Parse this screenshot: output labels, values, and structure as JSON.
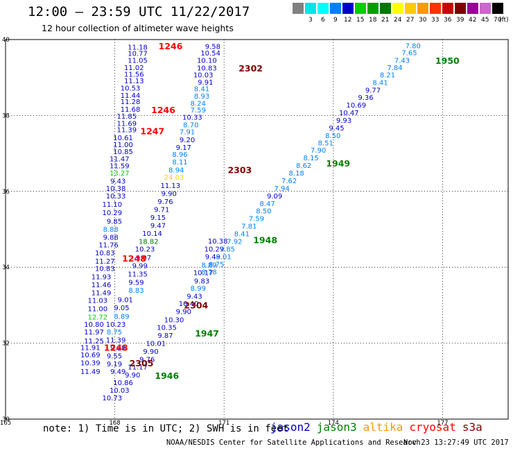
{
  "header": {
    "title": "12:00 – 23:59 UTC 11/22/2017",
    "subtitle": "12 hour collection of altimeter wave heights"
  },
  "color_scale": {
    "unit": "(ft)",
    "bins": [
      {
        "label": "",
        "color": "#808080"
      },
      {
        "label": "3",
        "color": "#00e5e5"
      },
      {
        "label": "6",
        "color": "#00ffff"
      },
      {
        "label": "9",
        "color": "#0080ff"
      },
      {
        "label": "12",
        "color": "#0000cd"
      },
      {
        "label": "15",
        "color": "#00d000"
      },
      {
        "label": "18",
        "color": "#00a000"
      },
      {
        "label": "21",
        "color": "#007800"
      },
      {
        "label": "24",
        "color": "#ffff00"
      },
      {
        "label": "27",
        "color": "#ffcc00"
      },
      {
        "label": "30",
        "color": "#ff9900"
      },
      {
        "label": "33",
        "color": "#ff3300"
      },
      {
        "label": "36",
        "color": "#cc0000"
      },
      {
        "label": "39",
        "color": "#800000"
      },
      {
        "label": "42",
        "color": "#990099"
      },
      {
        "label": "45",
        "color": "#cc66cc"
      },
      {
        "label": "70",
        "color": "#000000"
      }
    ]
  },
  "axes": {
    "lat_labels": [
      "40",
      "38",
      "36",
      "34",
      "32",
      "30"
    ],
    "lon_labels": [
      "165",
      "168",
      "171",
      "174",
      "177"
    ],
    "lat_range": [
      30,
      40
    ],
    "lon_range": [
      165,
      178.8
    ]
  },
  "footer": {
    "note": "note: 1) Time is in UTC; 2) SWH is in feet",
    "satellites": [
      {
        "name": "jason2",
        "color": "#0000cd"
      },
      {
        "name": "jason3",
        "color": "#008000"
      },
      {
        "name": "altika",
        "color": "#ff9900"
      },
      {
        "name": "cryosat",
        "color": "#ff0000"
      },
      {
        "name": "s3a",
        "color": "#800000"
      }
    ],
    "credit": "NOAA/NESDIS Center for Satellite Applications and Research",
    "generated": "Nov 23 13:27:49 UTC 2017"
  },
  "chart_data": {
    "type": "scatter",
    "value_unit": "ft",
    "tracks": [
      {
        "name": "left-track",
        "points": [
          {
            "lat": 39.8,
            "lon": 168.9,
            "v": "11.18"
          },
          {
            "lat": 39.63,
            "lon": 168.9,
            "v": "10.77"
          },
          {
            "lat": 39.45,
            "lon": 168.9,
            "v": "11.05"
          },
          {
            "lat": 39.26,
            "lon": 168.8,
            "v": "11.02"
          },
          {
            "lat": 39.09,
            "lon": 168.8,
            "v": "11.56"
          },
          {
            "lat": 38.91,
            "lon": 168.8,
            "v": "11.13"
          },
          {
            "lat": 38.72,
            "lon": 168.7,
            "v": "10.53"
          },
          {
            "lat": 38.53,
            "lon": 168.7,
            "v": "11.44"
          },
          {
            "lat": 38.36,
            "lon": 168.7,
            "v": "11.28"
          },
          {
            "lat": 38.16,
            "lon": 168.7,
            "v": "11.68"
          },
          {
            "lat": 37.98,
            "lon": 168.6,
            "v": "11.85"
          },
          {
            "lat": 37.79,
            "lon": 168.6,
            "v": "11.69"
          },
          {
            "lat": 37.62,
            "lon": 168.6,
            "v": "11.39"
          },
          {
            "lat": 37.41,
            "lon": 168.5,
            "v": "10.61"
          },
          {
            "lat": 37.23,
            "lon": 168.5,
            "v": "11.00"
          },
          {
            "lat": 37.05,
            "lon": 168.5,
            "v": "10.85"
          },
          {
            "lat": 36.86,
            "lon": 168.4,
            "v": "11.47"
          },
          {
            "lat": 36.67,
            "lon": 168.4,
            "v": "11.59"
          },
          {
            "lat": 36.48,
            "lon": 168.4,
            "v": "13.27"
          },
          {
            "lat": 36.27,
            "lon": 168.3,
            "v": "9.43"
          },
          {
            "lat": 36.08,
            "lon": 168.3,
            "v": "10.38"
          },
          {
            "lat": 35.88,
            "lon": 168.3,
            "v": "10.33"
          },
          {
            "lat": 35.66,
            "lon": 168.2,
            "v": "11.10"
          },
          {
            "lat": 35.44,
            "lon": 168.2,
            "v": "10.29"
          },
          {
            "lat": 35.21,
            "lon": 168.2,
            "v": "9.85"
          },
          {
            "lat": 35.0,
            "lon": 168.1,
            "v": "8.88"
          },
          {
            "lat": 34.79,
            "lon": 168.1,
            "v": "9.88"
          },
          {
            "lat": 34.59,
            "lon": 168.1,
            "v": "11.76"
          },
          {
            "lat": 34.38,
            "lon": 168.0,
            "v": "10.83"
          },
          {
            "lat": 34.16,
            "lon": 168.0,
            "v": "11.27"
          },
          {
            "lat": 33.97,
            "lon": 168.0,
            "v": "10.83"
          },
          {
            "lat": 33.75,
            "lon": 167.9,
            "v": "11.93"
          },
          {
            "lat": 33.54,
            "lon": 167.9,
            "v": "11.46"
          },
          {
            "lat": 33.33,
            "lon": 167.9,
            "v": "11.49"
          },
          {
            "lat": 33.13,
            "lon": 167.8,
            "v": "11.03"
          },
          {
            "lat": 32.91,
            "lon": 167.8,
            "v": "11.00"
          },
          {
            "lat": 32.69,
            "lon": 167.8,
            "v": "12.72"
          },
          {
            "lat": 32.5,
            "lon": 167.7,
            "v": "10.80"
          },
          {
            "lat": 32.29,
            "lon": 167.7,
            "v": "11.97"
          },
          {
            "lat": 32.06,
            "lon": 167.7,
            "v": "11.25"
          },
          {
            "lat": 31.88,
            "lon": 167.6,
            "v": "11.91"
          },
          {
            "lat": 31.69,
            "lon": 167.6,
            "v": "10.69"
          },
          {
            "lat": 31.48,
            "lon": 167.6,
            "v": "10.39"
          },
          {
            "lat": 31.25,
            "lon": 167.6,
            "v": "11.49"
          }
        ]
      },
      {
        "name": "middle-track",
        "points": [
          {
            "lat": 39.82,
            "lon": 170.9,
            "v": "9.58"
          },
          {
            "lat": 39.64,
            "lon": 170.9,
            "v": "10.54"
          },
          {
            "lat": 39.45,
            "lon": 170.8,
            "v": "10.10"
          },
          {
            "lat": 39.25,
            "lon": 170.8,
            "v": "10.83"
          },
          {
            "lat": 39.07,
            "lon": 170.7,
            "v": "10.03"
          },
          {
            "lat": 38.88,
            "lon": 170.7,
            "v": "9.91"
          },
          {
            "lat": 38.7,
            "lon": 170.6,
            "v": "8.41"
          },
          {
            "lat": 38.51,
            "lon": 170.6,
            "v": "8.93"
          },
          {
            "lat": 38.32,
            "lon": 170.5,
            "v": "8.24"
          },
          {
            "lat": 38.14,
            "lon": 170.5,
            "v": "7.59"
          },
          {
            "lat": 37.95,
            "lon": 170.4,
            "v": "10.33"
          },
          {
            "lat": 37.75,
            "lon": 170.3,
            "v": "8.70"
          },
          {
            "lat": 37.57,
            "lon": 170.2,
            "v": "7.91"
          },
          {
            "lat": 37.36,
            "lon": 170.2,
            "v": "9.20"
          },
          {
            "lat": 37.16,
            "lon": 170.1,
            "v": "9.17"
          },
          {
            "lat": 36.97,
            "lon": 170.0,
            "v": "8.96"
          },
          {
            "lat": 36.77,
            "lon": 170.0,
            "v": "8.11"
          },
          {
            "lat": 36.56,
            "lon": 169.9,
            "v": "8.94"
          },
          {
            "lat": 36.37,
            "lon": 169.9,
            "v": "24.03"
          },
          {
            "lat": 36.15,
            "lon": 169.8,
            "v": "11.13"
          },
          {
            "lat": 35.94,
            "lon": 169.7,
            "v": "9.90"
          },
          {
            "lat": 35.73,
            "lon": 169.6,
            "v": "9.76"
          },
          {
            "lat": 35.52,
            "lon": 169.5,
            "v": "9.71"
          },
          {
            "lat": 35.31,
            "lon": 169.4,
            "v": "9.15"
          },
          {
            "lat": 35.1,
            "lon": 169.4,
            "v": "9.47"
          },
          {
            "lat": 34.89,
            "lon": 169.3,
            "v": "10.14"
          },
          {
            "lat": 34.68,
            "lon": 169.2,
            "v": "18.82"
          },
          {
            "lat": 34.48,
            "lon": 169.1,
            "v": "10.23"
          },
          {
            "lat": 34.25,
            "lon": 169.0,
            "v": "9.07"
          },
          {
            "lat": 34.04,
            "lon": 168.9,
            "v": "9.99"
          },
          {
            "lat": 33.82,
            "lon": 168.9,
            "v": "11.35"
          },
          {
            "lat": 33.6,
            "lon": 168.8,
            "v": "9.59"
          },
          {
            "lat": 33.39,
            "lon": 168.8,
            "v": "8.83"
          },
          {
            "lat": 33.14,
            "lon": 168.5,
            "v": "9.01"
          },
          {
            "lat": 32.93,
            "lon": 168.4,
            "v": "9.05"
          },
          {
            "lat": 32.71,
            "lon": 168.4,
            "v": "8.89"
          },
          {
            "lat": 32.5,
            "lon": 168.3,
            "v": "10.23"
          },
          {
            "lat": 32.29,
            "lon": 168.2,
            "v": "8.75"
          },
          {
            "lat": 32.08,
            "lon": 168.3,
            "v": "11.39"
          },
          {
            "lat": 31.87,
            "lon": 168.3,
            "v": "9.88"
          },
          {
            "lat": 31.66,
            "lon": 168.2,
            "v": "9.55"
          },
          {
            "lat": 31.45,
            "lon": 168.2,
            "v": "9.19"
          },
          {
            "lat": 31.25,
            "lon": 168.3,
            "v": "9.49"
          }
        ]
      },
      {
        "name": "lower-mid-track",
        "points": [
          {
            "lat": 34.69,
            "lon": 171.1,
            "v": "10.38"
          },
          {
            "lat": 34.48,
            "lon": 171.0,
            "v": "10.29"
          },
          {
            "lat": 34.28,
            "lon": 170.9,
            "v": "9.49"
          },
          {
            "lat": 34.06,
            "lon": 170.8,
            "v": "8.89"
          },
          {
            "lat": 33.86,
            "lon": 170.7,
            "v": "10.17"
          },
          {
            "lat": 33.64,
            "lon": 170.6,
            "v": "9.83"
          },
          {
            "lat": 33.45,
            "lon": 170.5,
            "v": "8.99"
          },
          {
            "lat": 33.24,
            "lon": 170.4,
            "v": "9.43"
          },
          {
            "lat": 33.04,
            "lon": 170.3,
            "v": "10.40"
          },
          {
            "lat": 32.83,
            "lon": 170.1,
            "v": "9.90"
          },
          {
            "lat": 32.61,
            "lon": 169.9,
            "v": "10.30"
          },
          {
            "lat": 32.41,
            "lon": 169.7,
            "v": "10.35"
          },
          {
            "lat": 32.2,
            "lon": 169.6,
            "v": "9.87"
          },
          {
            "lat": 31.99,
            "lon": 169.4,
            "v": "10.01"
          },
          {
            "lat": 31.78,
            "lon": 169.2,
            "v": "9.90"
          },
          {
            "lat": 31.57,
            "lon": 169.1,
            "v": "9.76"
          },
          {
            "lat": 31.37,
            "lon": 168.9,
            "v": "11.17"
          },
          {
            "lat": 31.16,
            "lon": 168.7,
            "v": "9.90"
          },
          {
            "lat": 30.96,
            "lon": 168.5,
            "v": "10.86"
          },
          {
            "lat": 30.76,
            "lon": 168.4,
            "v": "10.03"
          },
          {
            "lat": 30.56,
            "lon": 168.2,
            "v": "10.73"
          }
        ]
      },
      {
        "name": "right-track",
        "points": [
          {
            "lat": 39.84,
            "lon": 176.4,
            "v": "7.80"
          },
          {
            "lat": 39.65,
            "lon": 176.3,
            "v": "7.65"
          },
          {
            "lat": 39.45,
            "lon": 176.1,
            "v": "7.43"
          },
          {
            "lat": 39.26,
            "lon": 175.9,
            "v": "7.84"
          },
          {
            "lat": 39.07,
            "lon": 175.7,
            "v": "8.21"
          },
          {
            "lat": 38.87,
            "lon": 175.5,
            "v": "8.41"
          },
          {
            "lat": 38.67,
            "lon": 175.3,
            "v": "9.77"
          },
          {
            "lat": 38.47,
            "lon": 175.1,
            "v": "9.36"
          },
          {
            "lat": 38.27,
            "lon": 174.9,
            "v": "10.69"
          },
          {
            "lat": 38.07,
            "lon": 174.7,
            "v": "10.47"
          },
          {
            "lat": 37.87,
            "lon": 174.5,
            "v": "9.93"
          },
          {
            "lat": 37.67,
            "lon": 174.3,
            "v": "9.45"
          },
          {
            "lat": 37.47,
            "lon": 174.2,
            "v": "8.50"
          },
          {
            "lat": 37.28,
            "lon": 174.0,
            "v": "8.51"
          },
          {
            "lat": 37.08,
            "lon": 173.8,
            "v": "7.90"
          },
          {
            "lat": 36.88,
            "lon": 173.6,
            "v": "8.15"
          },
          {
            "lat": 36.68,
            "lon": 173.4,
            "v": "8.62"
          },
          {
            "lat": 36.48,
            "lon": 173.2,
            "v": "8.18"
          },
          {
            "lat": 36.28,
            "lon": 173.0,
            "v": "7.62"
          },
          {
            "lat": 36.08,
            "lon": 172.8,
            "v": "7.94"
          },
          {
            "lat": 35.88,
            "lon": 172.6,
            "v": "9.09"
          },
          {
            "lat": 35.68,
            "lon": 172.4,
            "v": "8.47"
          },
          {
            "lat": 35.48,
            "lon": 172.3,
            "v": "8.50"
          },
          {
            "lat": 35.28,
            "lon": 172.1,
            "v": "7.59"
          },
          {
            "lat": 35.08,
            "lon": 171.9,
            "v": "7.81"
          },
          {
            "lat": 34.88,
            "lon": 171.7,
            "v": "8.41"
          },
          {
            "lat": 34.68,
            "lon": 171.5,
            "v": "7.92"
          },
          {
            "lat": 34.48,
            "lon": 171.3,
            "v": "7.85"
          },
          {
            "lat": 34.28,
            "lon": 171.2,
            "v": "8.01"
          },
          {
            "lat": 34.08,
            "lon": 171.0,
            "v": "8.75"
          },
          {
            "lat": 33.88,
            "lon": 170.8,
            "v": "8.78"
          }
        ]
      }
    ],
    "time_labels": [
      {
        "t": "1246",
        "lat": 39.83,
        "lon": 169.2,
        "sat": "cryosat"
      },
      {
        "t": "1246",
        "lat": 38.14,
        "lon": 169.0,
        "sat": "cryosat"
      },
      {
        "t": "1247",
        "lat": 37.59,
        "lon": 168.7,
        "sat": "cryosat"
      },
      {
        "t": "1248",
        "lat": 34.23,
        "lon": 168.2,
        "sat": "cryosat"
      },
      {
        "t": "1248",
        "lat": 31.88,
        "lon": 167.7,
        "sat": "cryosat"
      },
      {
        "t": "2302",
        "lat": 39.24,
        "lon": 171.4,
        "sat": "s3a"
      },
      {
        "t": "2303",
        "lat": 36.56,
        "lon": 171.1,
        "sat": "s3a"
      },
      {
        "t": "2304",
        "lat": 33.0,
        "lon": 169.9,
        "sat": "s3a"
      },
      {
        "t": "2305",
        "lat": 31.47,
        "lon": 168.4,
        "sat": "s3a"
      },
      {
        "t": "1950",
        "lat": 39.44,
        "lon": 176.8,
        "sat": "jason3"
      },
      {
        "t": "1949",
        "lat": 36.74,
        "lon": 173.8,
        "sat": "jason3"
      },
      {
        "t": "1948",
        "lat": 34.72,
        "lon": 171.8,
        "sat": "jason3"
      },
      {
        "t": "1947",
        "lat": 32.26,
        "lon": 170.2,
        "sat": "jason3"
      },
      {
        "t": "1946",
        "lat": 31.14,
        "lon": 169.1,
        "sat": "jason3"
      }
    ]
  }
}
